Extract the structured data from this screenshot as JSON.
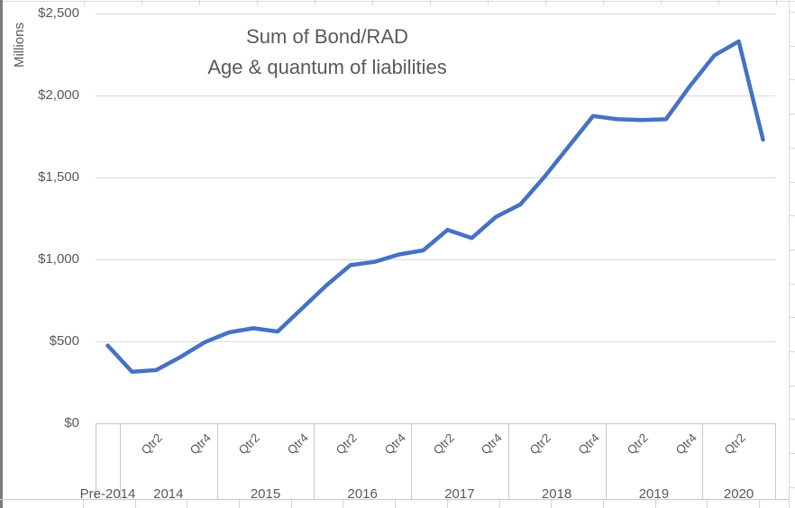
{
  "chart_data": {
    "type": "line",
    "title": "Sum of Bond/RAD Age & quantum of liabilities",
    "title_lines": [
      "Sum of Bond/RAD",
      "Age & quantum of liabilities"
    ],
    "y_axis": {
      "label": "Millions",
      "tick_labels": [
        "$0",
        "$500",
        "$1,000",
        "$1,500",
        "$2,000",
        "$2,500"
      ],
      "tick_values": [
        0,
        500,
        1000,
        1500,
        2000,
        2500
      ],
      "ylim": [
        0,
        2500
      ],
      "gridlines": true
    },
    "x_axis": {
      "groups": [
        {
          "label": "Pre-2014",
          "slots": 1,
          "quarter_ticks": []
        },
        {
          "label": "2014",
          "slots": 4,
          "quarter_ticks": [
            "Qtr2",
            "Qtr4"
          ]
        },
        {
          "label": "2015",
          "slots": 4,
          "quarter_ticks": [
            "Qtr2",
            "Qtr4"
          ]
        },
        {
          "label": "2016",
          "slots": 4,
          "quarter_ticks": [
            "Qtr2",
            "Qtr4"
          ]
        },
        {
          "label": "2017",
          "slots": 4,
          "quarter_ticks": [
            "Qtr2",
            "Qtr4"
          ]
        },
        {
          "label": "2018",
          "slots": 4,
          "quarter_ticks": [
            "Qtr2",
            "Qtr4"
          ]
        },
        {
          "label": "2019",
          "slots": 4,
          "quarter_ticks": [
            "Qtr2",
            "Qtr4"
          ]
        },
        {
          "label": "2020",
          "slots": 3,
          "quarter_ticks": [
            "Qtr2"
          ]
        }
      ]
    },
    "categories": [
      "Pre-2014",
      "2014 Qtr1",
      "2014 Qtr2",
      "2014 Qtr3",
      "2014 Qtr4",
      "2015 Qtr1",
      "2015 Qtr2",
      "2015 Qtr3",
      "2015 Qtr4",
      "2016 Qtr1",
      "2016 Qtr2",
      "2016 Qtr3",
      "2016 Qtr4",
      "2017 Qtr1",
      "2017 Qtr2",
      "2017 Qtr3",
      "2017 Qtr4",
      "2018 Qtr1",
      "2018 Qtr2",
      "2018 Qtr3",
      "2018 Qtr4",
      "2019 Qtr1",
      "2019 Qtr2",
      "2019 Qtr3",
      "2019 Qtr4",
      "2020 Qtr1",
      "2020 Qtr2",
      "2020 Qtr3"
    ],
    "series": [
      {
        "name": "Sum of Bond/RAD",
        "units": "$ millions",
        "color": "#4472C4",
        "values": [
          475,
          315,
          325,
          405,
          495,
          555,
          580,
          560,
          700,
          840,
          965,
          985,
          1030,
          1055,
          1180,
          1130,
          1260,
          1335,
          1505,
          1690,
          1875,
          1855,
          1850,
          1855,
          2060,
          2245,
          2330,
          1730
        ]
      }
    ],
    "legend": "none"
  },
  "colors": {
    "accent": "#4472C4",
    "chart_text": "#595959",
    "gridline": "#d9d9d9",
    "axis_line": "#c9c9c9",
    "sheet_gridline": "#cdd4de",
    "left_edge": "#7b7b7b"
  }
}
